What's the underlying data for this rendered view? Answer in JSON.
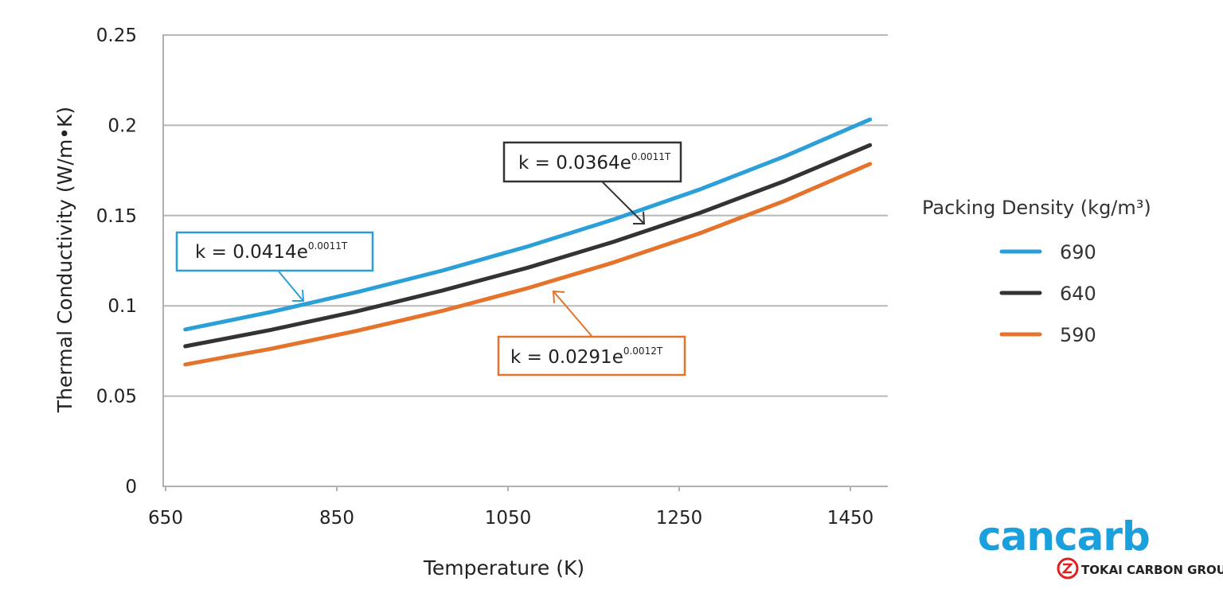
{
  "chart_data": {
    "type": "line",
    "xlabel": "Temperature (K)",
    "ylabel": "Thermal Conductivity (W/m•K)",
    "xlim": [
      647,
      1495
    ],
    "ylim": [
      0,
      0.25
    ],
    "xticks": [
      "650",
      "850",
      "1050",
      "1250",
      "1450"
    ],
    "xtick_values": [
      650,
      850,
      1050,
      1250,
      1450
    ],
    "yticks": [
      "0",
      "0.05",
      "0.1",
      "0.15",
      "0.2",
      "0.25"
    ],
    "ytick_values": [
      0,
      0.05,
      0.1,
      0.15,
      0.2,
      0.25
    ],
    "grid": "horizontal",
    "legend": {
      "title": "Packing Density (kg/m³)",
      "placement": "right"
    },
    "x": [
      673,
      773,
      873,
      973,
      1073,
      1173,
      1273,
      1373,
      1473
    ],
    "series": [
      {
        "name": "690",
        "color": "#2a9fd8",
        "values": [
          0.0869,
          0.0966,
          0.1075,
          0.1195,
          0.1329,
          0.1478,
          0.1643,
          0.1827,
          0.2032
        ],
        "annotation": {
          "prefix": "k = 0.0414e",
          "exponent": "0.0011T"
        }
      },
      {
        "name": "640",
        "color": "#333333",
        "values": [
          0.0776,
          0.0867,
          0.0969,
          0.1084,
          0.1211,
          0.1354,
          0.1513,
          0.1691,
          0.189
        ],
        "annotation": {
          "prefix": "k = 0.0364e",
          "exponent": "0.0011T"
        }
      },
      {
        "name": "590",
        "color": "#e5732b",
        "values": [
          0.0675,
          0.0762,
          0.0861,
          0.0972,
          0.1098,
          0.124,
          0.14,
          0.1581,
          0.1786
        ],
        "annotation": {
          "prefix": "k = 0.0291e",
          "exponent": "0.0012T"
        }
      }
    ]
  },
  "logo": {
    "brand": "cancarb",
    "group": "TOKAI CARBON GROUP",
    "brand_color": "#1aa0dc",
    "group_color": "#e02020"
  }
}
